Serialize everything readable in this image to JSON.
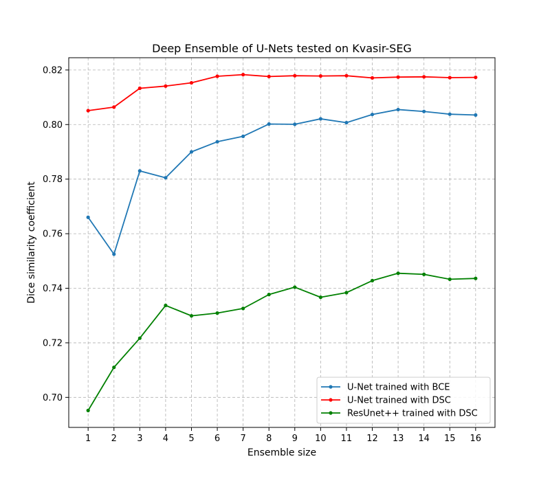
{
  "chart_data": {
    "type": "line",
    "title": "Deep Ensemble of U-Nets tested on Kvasir-SEG",
    "xlabel": "Ensemble size",
    "ylabel": "Dice similarity coefficient",
    "x": [
      1,
      2,
      3,
      4,
      5,
      6,
      7,
      8,
      9,
      10,
      11,
      12,
      13,
      14,
      15,
      16
    ],
    "xlim": [
      0.25,
      16.75
    ],
    "ylim": [
      0.689,
      0.8245
    ],
    "yticks": [
      0.7,
      0.72,
      0.74,
      0.76,
      0.78,
      0.8,
      0.82
    ],
    "ytick_labels": [
      "0.70",
      "0.72",
      "0.74",
      "0.76",
      "0.78",
      "0.80",
      "0.82"
    ],
    "xtick_labels": [
      "1",
      "2",
      "3",
      "4",
      "5",
      "6",
      "7",
      "8",
      "9",
      "10",
      "11",
      "12",
      "13",
      "14",
      "15",
      "16"
    ],
    "grid": true,
    "legend_position": "bottom-right",
    "series": [
      {
        "name": "U-Net trained with BCE",
        "color": "#1f77b4",
        "values": [
          0.766,
          0.7525,
          0.783,
          0.7805,
          0.79,
          0.7937,
          0.7957,
          0.8002,
          0.8001,
          0.8021,
          0.8007,
          0.8037,
          0.8055,
          0.8048,
          0.8038,
          0.8035
        ]
      },
      {
        "name": "U-Net trained with DSC",
        "color": "#ff0000",
        "values": [
          0.8051,
          0.8064,
          0.8133,
          0.8141,
          0.8153,
          0.8177,
          0.8183,
          0.8176,
          0.8179,
          0.8178,
          0.8179,
          0.8171,
          0.8174,
          0.8175,
          0.8172,
          0.8173
        ]
      },
      {
        "name": "ResUnet++ trained with DSC",
        "color": "#008000",
        "values": [
          0.6952,
          0.711,
          0.7217,
          0.7337,
          0.7299,
          0.7309,
          0.7326,
          0.7377,
          0.7404,
          0.7367,
          0.7384,
          0.7428,
          0.7455,
          0.7451,
          0.7433,
          0.7436
        ]
      }
    ]
  }
}
